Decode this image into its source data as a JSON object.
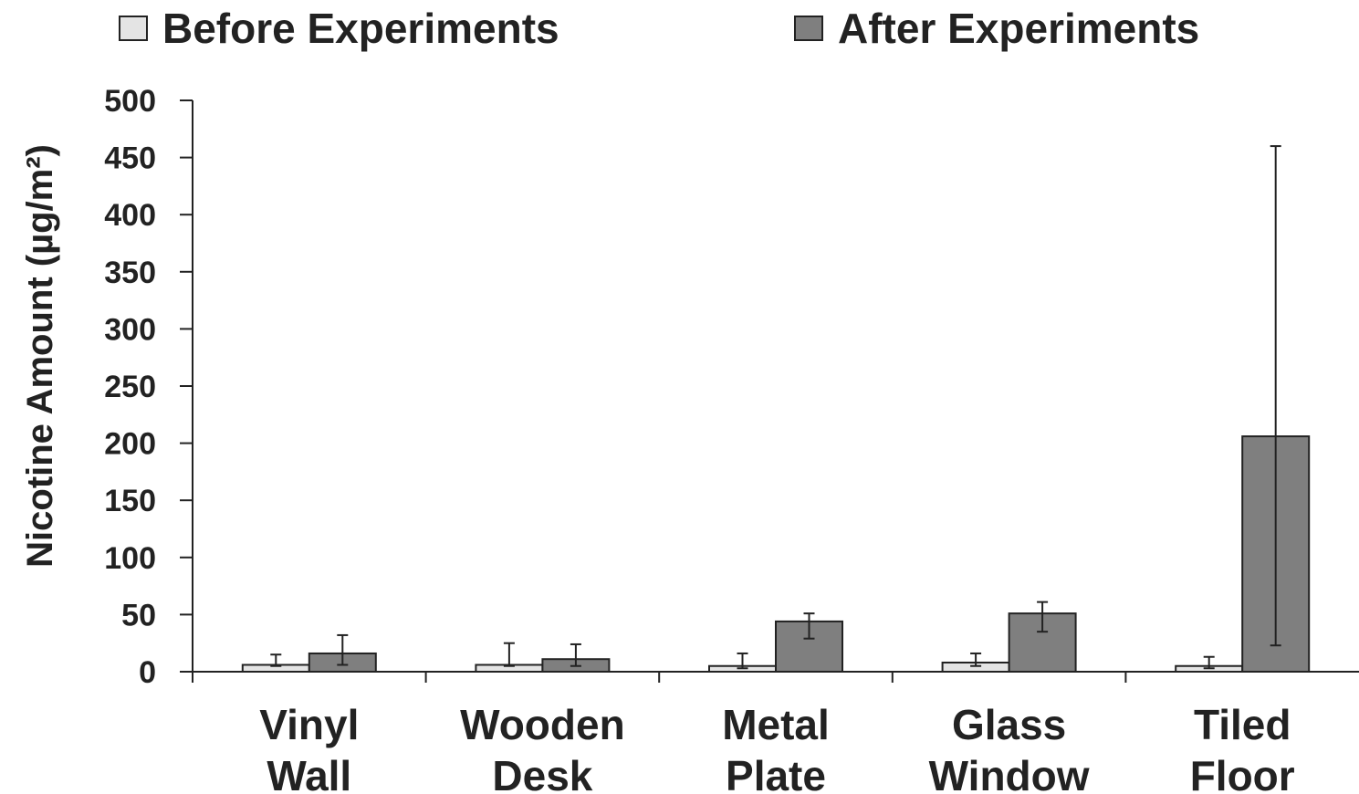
{
  "chart_data": {
    "type": "bar",
    "categories": [
      [
        "Vinyl",
        "Wall"
      ],
      [
        "Wooden",
        "Desk"
      ],
      [
        "Metal",
        "Plate"
      ],
      [
        "Glass",
        "Window"
      ],
      [
        "Tiled",
        "Floor"
      ]
    ],
    "series": [
      {
        "name": "Before Experiments",
        "color": "#e4e4e4",
        "values": [
          6,
          6,
          5,
          8,
          5
        ],
        "error": [
          [
            5,
            15
          ],
          [
            5,
            25
          ],
          [
            3,
            16
          ],
          [
            5,
            16
          ],
          [
            3,
            13
          ]
        ]
      },
      {
        "name": "After Experiments",
        "color": "#7f7f7f",
        "values": [
          16,
          11,
          44,
          51,
          206
        ],
        "error": [
          [
            6,
            32
          ],
          [
            5,
            24
          ],
          [
            29,
            51
          ],
          [
            35,
            61
          ],
          [
            23,
            460
          ]
        ]
      }
    ],
    "ylabel": "Nicotine Amount (µg/m²)",
    "ylim": [
      0,
      500
    ],
    "yticks": [
      "0",
      "50",
      "100",
      "150",
      "200",
      "250",
      "300",
      "350",
      "400",
      "450",
      "500"
    ],
    "legend_position": "top",
    "grid": false
  }
}
